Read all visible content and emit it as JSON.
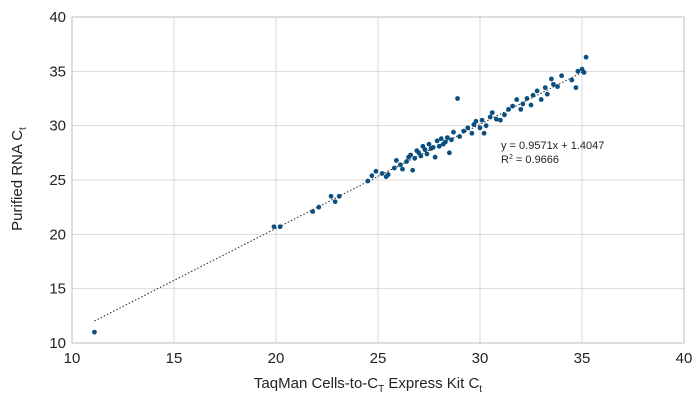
{
  "chart_data": {
    "type": "scatter",
    "xlabel": {
      "main": "TaqMan Cells-to-C",
      "sub": "T",
      "mid": " Express Kit C",
      "sub2": "t"
    },
    "ylabel": {
      "main": "Purified RNA C",
      "sub": "t"
    },
    "xlim": [
      10,
      40
    ],
    "ylim": [
      10,
      40
    ],
    "xticks": [
      "10",
      "15",
      "20",
      "25",
      "30",
      "35",
      "40"
    ],
    "yticks": [
      "10",
      "15",
      "20",
      "25",
      "30",
      "35",
      "40"
    ],
    "grid": true,
    "point_color": "#0b4f80",
    "trendline": {
      "slope": 0.9571,
      "intercept": 1.4047,
      "x_range": [
        11.1,
        35.2
      ]
    },
    "annotation": {
      "equation": "y = 0.9571x + 1.4047",
      "r2_prefix": "R",
      "r2_sup": "2",
      "r2_suffix": " = 0.9666"
    },
    "points": [
      [
        11.1,
        11.0
      ],
      [
        19.9,
        20.7
      ],
      [
        20.2,
        20.7
      ],
      [
        21.8,
        22.1
      ],
      [
        22.1,
        22.5
      ],
      [
        22.7,
        23.5
      ],
      [
        22.9,
        23.0
      ],
      [
        23.1,
        23.5
      ],
      [
        24.5,
        24.9
      ],
      [
        24.7,
        25.4
      ],
      [
        24.9,
        25.8
      ],
      [
        25.2,
        25.6
      ],
      [
        25.4,
        25.3
      ],
      [
        25.5,
        25.5
      ],
      [
        25.8,
        26.1
      ],
      [
        25.9,
        26.8
      ],
      [
        26.1,
        26.4
      ],
      [
        26.2,
        26.0
      ],
      [
        26.4,
        26.7
      ],
      [
        26.5,
        27.1
      ],
      [
        26.6,
        27.3
      ],
      [
        26.7,
        25.9
      ],
      [
        26.8,
        27.0
      ],
      [
        26.9,
        27.7
      ],
      [
        27.0,
        27.5
      ],
      [
        27.1,
        27.2
      ],
      [
        27.2,
        28.1
      ],
      [
        27.3,
        27.8
      ],
      [
        27.4,
        27.4
      ],
      [
        27.5,
        28.3
      ],
      [
        27.6,
        27.9
      ],
      [
        27.7,
        28.0
      ],
      [
        27.8,
        27.1
      ],
      [
        27.9,
        28.6
      ],
      [
        28.0,
        28.1
      ],
      [
        28.1,
        28.8
      ],
      [
        28.2,
        28.3
      ],
      [
        28.3,
        28.5
      ],
      [
        28.4,
        28.9
      ],
      [
        28.5,
        27.5
      ],
      [
        28.6,
        28.7
      ],
      [
        28.7,
        29.4
      ],
      [
        28.9,
        32.5
      ],
      [
        29.0,
        29.0
      ],
      [
        29.2,
        29.5
      ],
      [
        29.4,
        29.8
      ],
      [
        29.6,
        29.3
      ],
      [
        29.7,
        30.1
      ],
      [
        29.8,
        30.4
      ],
      [
        30.0,
        29.8
      ],
      [
        30.1,
        30.5
      ],
      [
        30.2,
        29.3
      ],
      [
        30.3,
        30.0
      ],
      [
        30.5,
        30.8
      ],
      [
        30.6,
        31.2
      ],
      [
        30.8,
        30.6
      ],
      [
        31.0,
        30.5
      ],
      [
        31.2,
        31.0
      ],
      [
        31.4,
        31.5
      ],
      [
        31.6,
        31.8
      ],
      [
        31.8,
        32.4
      ],
      [
        32.0,
        31.5
      ],
      [
        32.1,
        32.0
      ],
      [
        32.3,
        32.5
      ],
      [
        32.5,
        31.9
      ],
      [
        32.6,
        32.8
      ],
      [
        32.8,
        33.2
      ],
      [
        33.0,
        32.4
      ],
      [
        33.2,
        33.5
      ],
      [
        33.3,
        32.9
      ],
      [
        33.5,
        34.3
      ],
      [
        33.6,
        33.8
      ],
      [
        33.8,
        33.6
      ],
      [
        34.0,
        34.6
      ],
      [
        34.5,
        34.2
      ],
      [
        34.7,
        33.5
      ],
      [
        34.8,
        35.0
      ],
      [
        35.0,
        35.2
      ],
      [
        35.1,
        34.9
      ],
      [
        35.2,
        36.3
      ]
    ]
  }
}
